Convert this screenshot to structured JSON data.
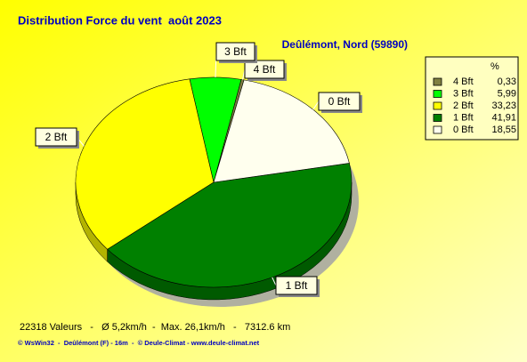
{
  "chart_data": {
    "type": "pie",
    "title": "Distribution Force du vent  août 2023",
    "subtitle": "Deûlémont, Nord (59890)",
    "legend_header": "%",
    "categories": [
      "4 Bft",
      "3 Bft",
      "2 Bft",
      "1 Bft",
      "0 Bft"
    ],
    "values": [
      0.33,
      5.99,
      33.23,
      41.91,
      18.55
    ],
    "value_labels": [
      "0,33",
      "5,99",
      "33,23",
      "41,91",
      "18,55"
    ],
    "colors": [
      "#808040",
      "#00ff00",
      "#ffff00",
      "#008000",
      "#ffffee"
    ],
    "legend": "right",
    "footer": "22318 Valeurs   -   Ø 5,2km/h  -  Max. 26,1km/h   -   7312.6 km",
    "credit": "© WsWin32  -  Deûlémont (F) - 16m  -  © Deule-Climat - www.deule-climat.net"
  }
}
